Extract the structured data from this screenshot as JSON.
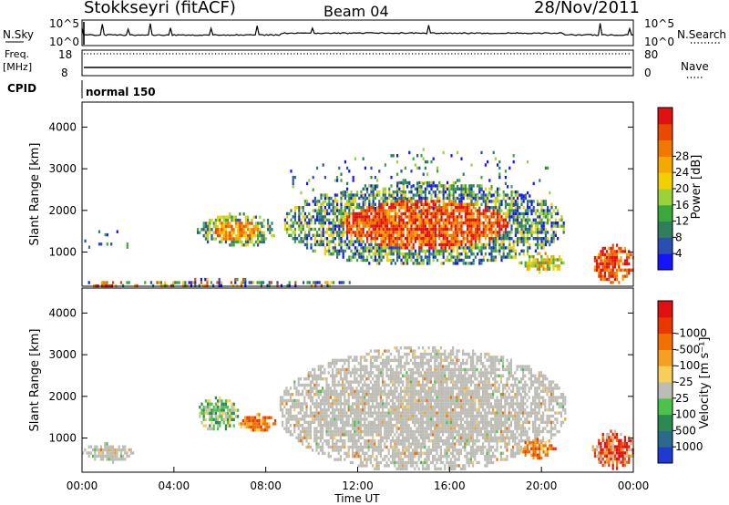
{
  "header": {
    "title": "Stokkseyri (fitACF)",
    "beam": "Beam 04",
    "date": "28/Nov/2011"
  },
  "strips": {
    "nsky_label": "N.Sky",
    "nsky_ticks": [
      "10^5",
      "10^0"
    ],
    "nsearch_label": "N.Search",
    "nsearch_ticks": [
      "10^5",
      "10^0"
    ],
    "freq_label": "Freq.",
    "freq_unit": "[MHz]",
    "freq_ticks": [
      "18",
      "8"
    ],
    "nave_label": "Nave",
    "nave_ticks": [
      "80",
      "0"
    ],
    "cpid_label": "CPID",
    "cpid_value": "normal 150"
  },
  "chart_data": [
    {
      "type": "heatmap",
      "name": "power",
      "xlabel": "",
      "ylabel": "Slant Range [km]",
      "x_range_hours": [
        0,
        24
      ],
      "ylim": [
        180,
        4600
      ],
      "yticks": [
        1000,
        2000,
        3000,
        4000
      ],
      "colorbar": {
        "label": "Power [dB]",
        "ticks": [
          4,
          8,
          12,
          16,
          20,
          24,
          28
        ],
        "colors": [
          "#1414ff",
          "#2a4fb0",
          "#2f7f5a",
          "#3aa83a",
          "#9bd23b",
          "#f0d000",
          "#f5a800",
          "#f07800",
          "#e84a00",
          "#e01010"
        ]
      },
      "regions": [
        {
          "t": [
            0.0,
            12.0
          ],
          "r": [
            200,
            380
          ],
          "level": "low-mixed"
        },
        {
          "t": [
            0.3,
            1.5
          ],
          "r": [
            200,
            300
          ],
          "level": "high"
        },
        {
          "t": [
            0.1,
            2.0
          ],
          "r": [
            900,
            1600
          ],
          "level": "sparse"
        },
        {
          "t": [
            5.0,
            8.4
          ],
          "r": [
            1150,
            1950
          ],
          "level": "mid-high"
        },
        {
          "t": [
            8.8,
            21.0
          ],
          "r": [
            700,
            2700
          ],
          "level": "high-core"
        },
        {
          "t": [
            8.8,
            21.0
          ],
          "r": [
            2000,
            3500
          ],
          "level": "sparse-low"
        },
        {
          "t": [
            19.0,
            21.0
          ],
          "r": [
            550,
            1000
          ],
          "level": "mid"
        },
        {
          "t": [
            22.2,
            24.0
          ],
          "r": [
            300,
            1200
          ],
          "level": "high"
        }
      ]
    },
    {
      "type": "heatmap",
      "name": "velocity",
      "xlabel": "Time UT",
      "ylabel": "Slant Range [km]",
      "x_range_hours": [
        0,
        24
      ],
      "xticks": [
        "00:00",
        "04:00",
        "08:00",
        "12:00",
        "16:00",
        "20:00",
        "00:00"
      ],
      "ylim": [
        180,
        4600
      ],
      "yticks": [
        1000,
        2000,
        3000,
        4000
      ],
      "colorbar": {
        "label": "Velocity [m s⁻¹]",
        "ticks": [
          "1000",
          "500",
          "100",
          "25",
          "-25",
          "-100",
          "-500",
          "-1000"
        ],
        "colors": [
          "#1f3ad0",
          "#2a6a8a",
          "#2a8a50",
          "#4bc34b",
          "#bdbdb6",
          "#f5cf5a",
          "#f5a020",
          "#f07000",
          "#e83800",
          "#e01010"
        ]
      },
      "regions": [
        {
          "t": [
            0.0,
            2.2
          ],
          "r": [
            450,
            900
          ],
          "level": "ground"
        },
        {
          "t": [
            5.0,
            6.8
          ],
          "r": [
            1200,
            2000
          ],
          "level": "positive"
        },
        {
          "t": [
            6.8,
            8.4
          ],
          "r": [
            1200,
            1600
          ],
          "level": "negative"
        },
        {
          "t": [
            8.6,
            21.0
          ],
          "r": [
            250,
            3200
          ],
          "level": "ground"
        },
        {
          "t": [
            19.0,
            20.6
          ],
          "r": [
            550,
            1000
          ],
          "level": "negative"
        },
        {
          "t": [
            22.2,
            24.0
          ],
          "r": [
            300,
            1200
          ],
          "level": "negative-strong"
        }
      ]
    }
  ]
}
